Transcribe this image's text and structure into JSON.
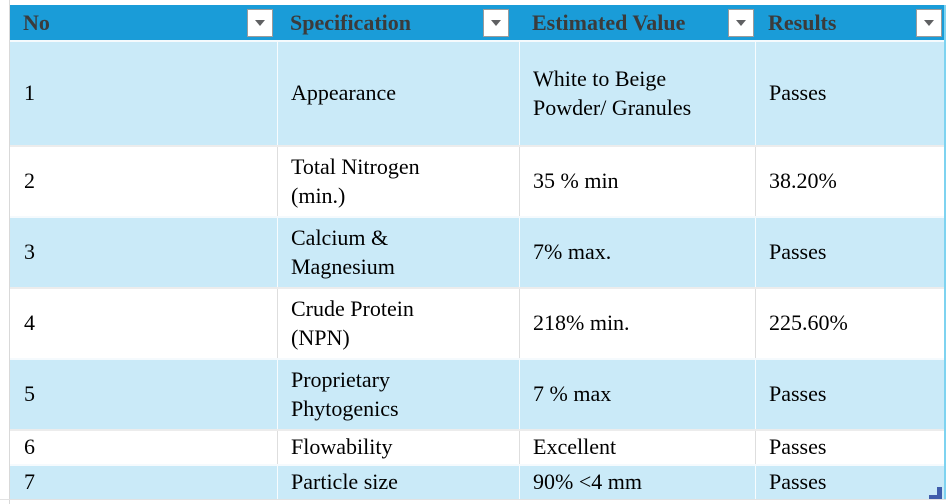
{
  "colors": {
    "header_bg": "#1a9cd8",
    "band_bg": "#caeaf8",
    "header_text": "#3b3b3b",
    "table_border": "#7ed3f0",
    "handle_color": "#3f5dab",
    "gridline": "#d9d9d9"
  },
  "table": {
    "columns": [
      {
        "label": "No"
      },
      {
        "label": "Specification"
      },
      {
        "label": "Estimated Value"
      },
      {
        "label": "Results"
      }
    ],
    "rows": [
      {
        "no": "1",
        "specification": "Appearance",
        "estimated_value": "White to Beige\nPowder/ Granules",
        "results": "Passes"
      },
      {
        "no": "2",
        "specification": "Total Nitrogen\n(min.)",
        "estimated_value": "35 % min",
        "results": "38.20%"
      },
      {
        "no": "3",
        "specification": "Calcium &\nMagnesium",
        "estimated_value": "7% max.",
        "results": "Passes"
      },
      {
        "no": "4",
        "specification": "Crude Protein\n(NPN)",
        "estimated_value": "218% min.",
        "results": "225.60%"
      },
      {
        "no": "5",
        "specification": "Proprietary\nPhytogenics",
        "estimated_value": "7 % max",
        "results": "Passes"
      },
      {
        "no": "6",
        "specification": "Flowability",
        "estimated_value": "Excellent",
        "results": "Passes"
      },
      {
        "no": "7",
        "specification": "Particle size",
        "estimated_value": "90% <4 mm",
        "results": "Passes"
      }
    ]
  }
}
